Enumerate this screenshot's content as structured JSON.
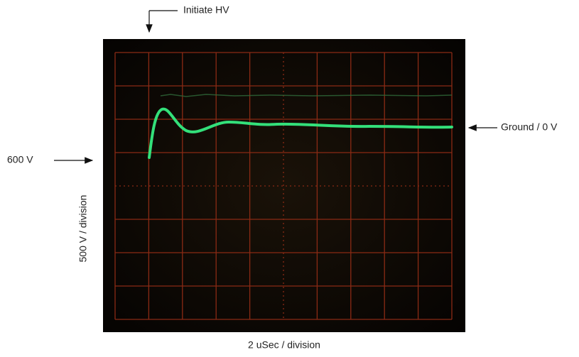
{
  "annotations": {
    "initiate": "Initiate HV",
    "ground": "Ground / 0 V",
    "level": "600 V",
    "vertical_scale": "500 V / division",
    "horizontal_scale": "2 uSec / division"
  }
}
